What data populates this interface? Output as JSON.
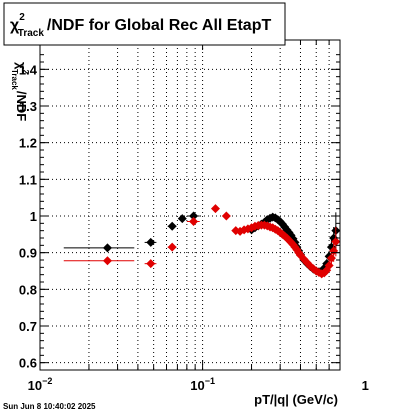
{
  "chart_data": {
    "type": "scatter",
    "title": {
      "base": "χ",
      "sup": "2",
      "sub": "Track",
      "rest": "/NDF for Global Rec All EtapT"
    },
    "xlabel": "pT/|q| (GeV/c)",
    "ylabel": {
      "base": "χ",
      "sup": "2",
      "sub": "Track",
      "rest": "/NDF"
    },
    "x_scale": "log",
    "xlim": [
      0.01,
      0.7
    ],
    "ylim": [
      0.58,
      1.48
    ],
    "grid": true,
    "x_ticks": [
      {
        "value": 0.01,
        "label": "10",
        "exp": "−2"
      },
      {
        "value": 0.1,
        "label": "10",
        "exp": "−1"
      },
      {
        "value": 1,
        "label": "1",
        "exp": ""
      }
    ],
    "y_ticks": [
      {
        "value": 0.6,
        "label": "0.6"
      },
      {
        "value": 0.7,
        "label": "0.7"
      },
      {
        "value": 0.8,
        "label": "0.8"
      },
      {
        "value": 0.9,
        "label": "0.9"
      },
      {
        "value": 1.0,
        "label": "1"
      },
      {
        "value": 1.1,
        "label": "1.1"
      },
      {
        "value": 1.2,
        "label": "1.2"
      },
      {
        "value": 1.3,
        "label": "1.3"
      },
      {
        "value": 1.4,
        "label": "1.4"
      }
    ],
    "series": [
      {
        "color": "#000000",
        "x": [
          0.026,
          0.048,
          0.065,
          0.075,
          0.088,
          0.2,
          0.21,
          0.22,
          0.23,
          0.24,
          0.25,
          0.26,
          0.27,
          0.28,
          0.29,
          0.3,
          0.31,
          0.32,
          0.33,
          0.34,
          0.35,
          0.36,
          0.37,
          0.38,
          0.39,
          0.4,
          0.42,
          0.44,
          0.46,
          0.48,
          0.5,
          0.52,
          0.54,
          0.56,
          0.58,
          0.6,
          0.62,
          0.64,
          0.66
        ],
        "y": [
          0.913,
          0.928,
          0.972,
          0.993,
          1.0,
          0.962,
          0.968,
          0.973,
          0.978,
          0.983,
          0.99,
          0.994,
          0.997,
          0.995,
          0.99,
          0.985,
          0.978,
          0.97,
          0.962,
          0.955,
          0.947,
          0.938,
          0.928,
          0.915,
          0.905,
          0.895,
          0.88,
          0.87,
          0.862,
          0.855,
          0.85,
          0.848,
          0.85,
          0.858,
          0.87,
          0.89,
          0.915,
          0.94,
          0.96
        ],
        "x_err": [
          0.012,
          0.004,
          0.004,
          0.004,
          0.008,
          0.004,
          0.004,
          0.004,
          0.004,
          0.004,
          0.004,
          0.004,
          0.004,
          0.004,
          0.004,
          0.004,
          0.004,
          0.004,
          0.004,
          0.004,
          0.004,
          0.004,
          0.004,
          0.004,
          0.004,
          0.004,
          0.004,
          0.004,
          0.004,
          0.004,
          0.004,
          0.004,
          0.004,
          0.004,
          0.004,
          0.004,
          0.004,
          0.004,
          0.004
        ],
        "y_err": [
          0,
          0,
          0,
          0,
          0,
          0,
          0,
          0,
          0,
          0,
          0,
          0,
          0,
          0,
          0,
          0,
          0,
          0,
          0,
          0,
          0,
          0,
          0,
          0,
          0,
          0,
          0,
          0,
          0,
          0,
          0,
          0.005,
          0.008,
          0.01,
          0.012,
          0.015,
          0.02,
          0.03,
          0.05
        ]
      },
      {
        "color": "#e00000",
        "x": [
          0.026,
          0.048,
          0.065,
          0.088,
          0.12,
          0.14,
          0.16,
          0.17,
          0.18,
          0.19,
          0.2,
          0.21,
          0.22,
          0.23,
          0.24,
          0.25,
          0.26,
          0.27,
          0.28,
          0.29,
          0.3,
          0.31,
          0.32,
          0.33,
          0.34,
          0.35,
          0.36,
          0.37,
          0.38,
          0.39,
          0.4,
          0.42,
          0.44,
          0.46,
          0.48,
          0.5,
          0.52,
          0.54,
          0.56,
          0.58,
          0.6,
          0.62,
          0.64,
          0.66
        ],
        "y": [
          0.878,
          0.87,
          0.915,
          0.985,
          1.02,
          1.0,
          0.96,
          0.958,
          0.962,
          0.965,
          0.968,
          0.972,
          0.974,
          0.975,
          0.975,
          0.973,
          0.97,
          0.968,
          0.964,
          0.96,
          0.955,
          0.95,
          0.945,
          0.94,
          0.934,
          0.928,
          0.922,
          0.915,
          0.908,
          0.9,
          0.893,
          0.882,
          0.872,
          0.863,
          0.856,
          0.85,
          0.846,
          0.842,
          0.845,
          0.852,
          0.865,
          0.885,
          0.905,
          0.93
        ],
        "x_err": [
          0.012,
          0.004,
          0.004,
          0.008,
          0.004,
          0.004,
          0.004,
          0.004,
          0.004,
          0.004,
          0.004,
          0.004,
          0.004,
          0.004,
          0.004,
          0.004,
          0.004,
          0.004,
          0.004,
          0.004,
          0.004,
          0.004,
          0.004,
          0.004,
          0.004,
          0.004,
          0.004,
          0.004,
          0.004,
          0.004,
          0.004,
          0.004,
          0.004,
          0.004,
          0.004,
          0.004,
          0.004,
          0.004,
          0.004,
          0.004,
          0.004,
          0.004,
          0.004,
          0.004
        ],
        "y_err": [
          0,
          0,
          0,
          0,
          0,
          0,
          0,
          0,
          0,
          0,
          0,
          0,
          0,
          0,
          0,
          0,
          0,
          0,
          0,
          0,
          0,
          0,
          0,
          0,
          0,
          0,
          0,
          0,
          0,
          0,
          0,
          0,
          0,
          0,
          0,
          0,
          0.005,
          0.008,
          0.01,
          0.012,
          0.015,
          0.02,
          0.03,
          0.04
        ]
      }
    ]
  },
  "footer": {
    "timestamp": "Sun Jun  8 10:40:02 2025"
  }
}
